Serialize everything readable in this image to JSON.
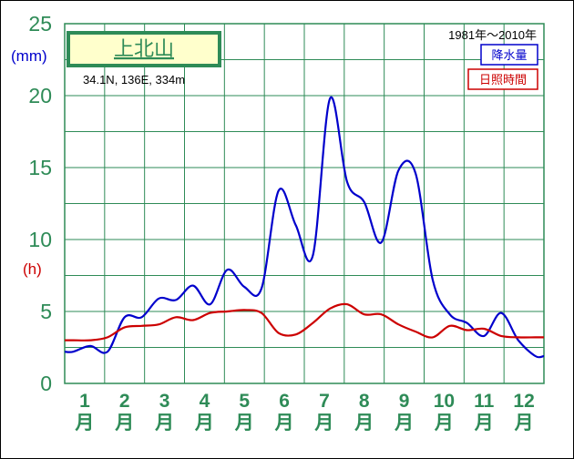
{
  "chart_data": {
    "type": "line",
    "title": "上北山",
    "location": "34.1N, 136E, 334m",
    "period": "1981年〜2010年",
    "y_ticks": [
      "0",
      "5",
      "10",
      "15",
      "20",
      "25"
    ],
    "ylim": [
      0,
      25
    ],
    "y_units": {
      "precipitation": "(mm)",
      "sunshine": "(h)"
    },
    "x_labels": [
      "1",
      "2",
      "3",
      "4",
      "5",
      "6",
      "7",
      "8",
      "9",
      "10",
      "11",
      "12"
    ],
    "x_suffix": "月",
    "grid": true,
    "legend_position": "top-right",
    "x_period": "half-month",
    "series": [
      {
        "name": "降水量",
        "color": "#0000cc",
        "values": [
          2.2,
          2.6,
          2.2,
          4.6,
          4.6,
          5.9,
          5.8,
          6.8,
          5.5,
          7.9,
          6.7,
          6.6,
          13.4,
          11.0,
          8.9,
          19.8,
          14.0,
          12.6,
          9.8,
          14.8,
          14.6,
          7.2,
          4.8,
          4.2,
          3.3,
          4.9,
          3.0,
          1.9
        ]
      },
      {
        "name": "日照時間",
        "color": "#cc0000",
        "values": [
          3.0,
          3.0,
          3.2,
          3.9,
          4.0,
          4.1,
          4.6,
          4.4,
          4.9,
          5.0,
          5.1,
          4.9,
          3.5,
          3.4,
          4.2,
          5.2,
          5.5,
          4.8,
          4.8,
          4.1,
          3.6,
          3.2,
          4.0,
          3.7,
          3.8,
          3.3,
          3.2,
          3.2
        ]
      }
    ]
  }
}
